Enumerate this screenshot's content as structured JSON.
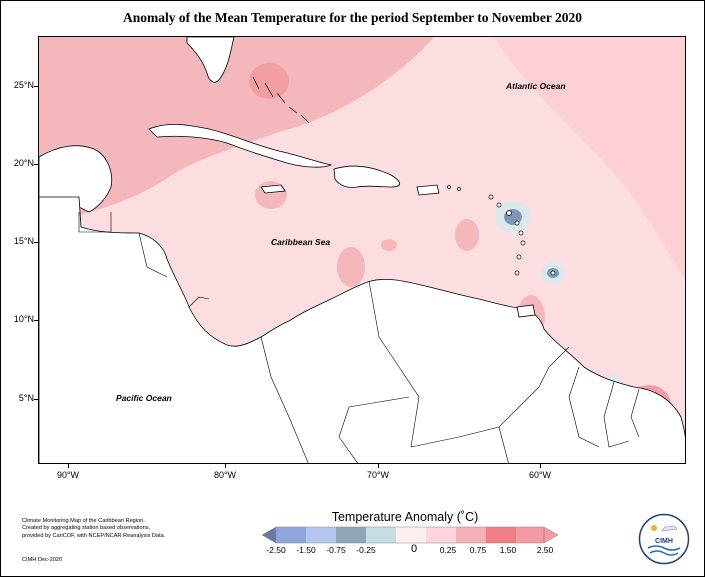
{
  "title": "Anomaly of the Mean Temperature for the period September to November 2020",
  "map": {
    "lat_ticks": [
      "25°N",
      "20°N",
      "15°N",
      "10°N",
      "5°N"
    ],
    "lon_ticks": [
      "90°W",
      "80°W",
      "70°W",
      "60°W"
    ],
    "region_labels": {
      "atlantic": "Atlantic Ocean",
      "caribbean": "Caribbean Sea",
      "pacific": "Pacific Ocean"
    }
  },
  "legend": {
    "title": "Temperature Anomaly (˚C)",
    "labels": [
      "-2.50",
      "-1.50",
      "-0.75",
      "-0.25",
      "0",
      "0.25",
      "0.75",
      "1.50",
      "2.50"
    ],
    "colors": [
      "#6a78a8",
      "#8ea6dc",
      "#b6c6ee",
      "#8ea5b7",
      "#c6dde3",
      "#fdeff0",
      "#fcd6da",
      "#f3b1b6",
      "#f07c86",
      "#f59aa0"
    ]
  },
  "credits": {
    "lines": [
      "Climate Monitoring Map of the Caribbean Region.",
      "Created by aggregating station based observations,",
      "provided by CariCOF, with NCEP/NCAR Reanalysis Data."
    ],
    "date": "CIMH Dec-2020"
  },
  "logo": {
    "text": "CIMH"
  }
}
